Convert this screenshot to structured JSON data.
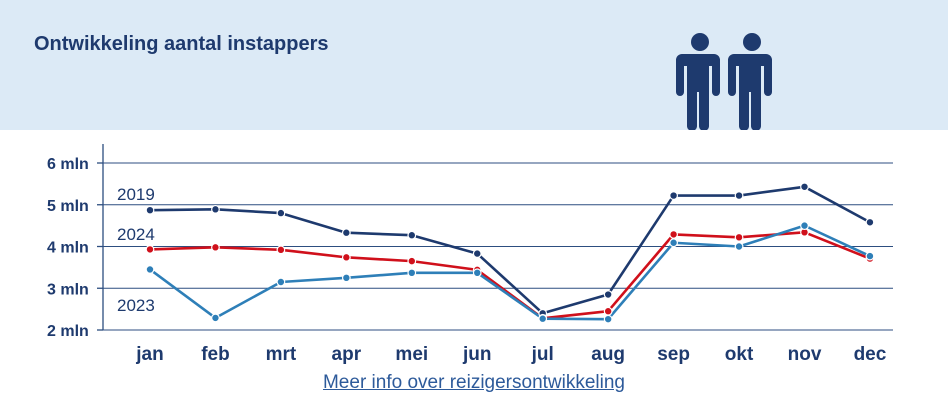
{
  "header": {
    "title": "Ontwikkeling aantal instappers",
    "icon": "two-people-icon"
  },
  "link": {
    "label": "Meer info over reizigersontwikkeling"
  },
  "colors": {
    "header_bg": "#dceaf6",
    "series_2019": "#1e3a6e",
    "series_2024": "#d0101b",
    "series_2023": "#2e7fb8",
    "grid": "#2d4e80"
  },
  "chart_data": {
    "type": "line",
    "title": "Ontwikkeling aantal instappers",
    "categories": [
      "jan",
      "feb",
      "mrt",
      "apr",
      "mei",
      "jun",
      "jul",
      "aug",
      "sep",
      "okt",
      "nov",
      "dec"
    ],
    "y_ticks": [
      "6 mln",
      "5 mln",
      "4 mln",
      "3 mln",
      "2 mln"
    ],
    "ylim": [
      2,
      6
    ],
    "grid": true,
    "series": [
      {
        "name": "2019",
        "color": "#1e3a6e",
        "values": [
          4.87,
          4.89,
          4.8,
          4.33,
          4.27,
          3.83,
          2.4,
          2.85,
          5.22,
          5.22,
          5.43,
          4.58
        ]
      },
      {
        "name": "2024",
        "color": "#d0101b",
        "values": [
          3.93,
          3.98,
          3.92,
          3.74,
          3.65,
          3.44,
          2.28,
          2.45,
          4.29,
          4.22,
          4.34,
          3.71
        ]
      },
      {
        "name": "2023",
        "color": "#2e7fb8",
        "values": [
          3.45,
          2.29,
          3.15,
          3.25,
          3.37,
          3.37,
          2.27,
          2.26,
          4.09,
          4.0,
          4.5,
          3.77
        ]
      }
    ]
  }
}
